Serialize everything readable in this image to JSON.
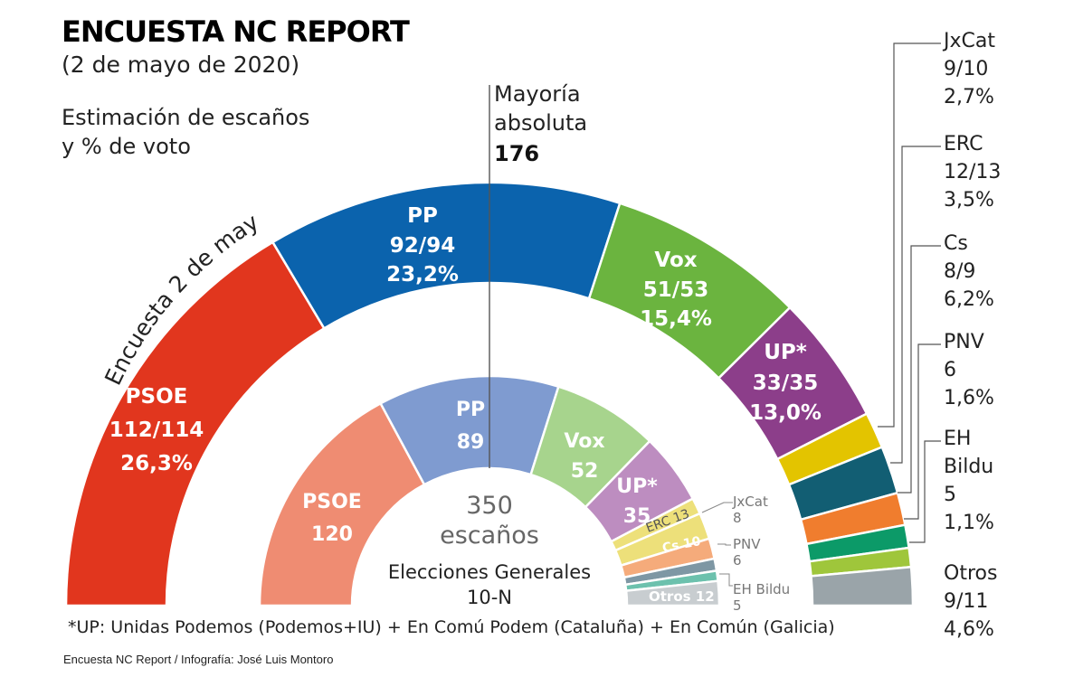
{
  "header": {
    "title": "ENCUESTA NC REPORT",
    "date": "(2 de mayo de 2020)",
    "subtitle_line1": "Estimación de escaños",
    "subtitle_line2": "y % de voto"
  },
  "majority": {
    "line1": "Mayoría",
    "line2": "absoluta",
    "value": "176"
  },
  "outer_ring_label": "Encuesta 2 de mayo",
  "center": {
    "total": "350",
    "total_label": "escaños",
    "election_line1": "Elecciones Generales",
    "election_line2": "10-N"
  },
  "footnote": "*UP: Unidas Podemos (Podemos+IU) + En Comú Podem (Cataluña) + En Común (Galicia)",
  "credit": "Encuesta NC Report / Infografía: José Luis Montoro",
  "chart_data": [
    {
      "type": "pie",
      "name": "Encuesta 2 de mayo",
      "series": [
        {
          "party": "PSOE",
          "seats": "112/114",
          "seats_value": 113,
          "vote": "26,3%",
          "color": "#e1361e"
        },
        {
          "party": "PP",
          "seats": "92/94",
          "seats_value": 93,
          "vote": "23,2%",
          "color": "#0b63ad"
        },
        {
          "party": "Vox",
          "seats": "51/53",
          "seats_value": 52,
          "vote": "15,4%",
          "color": "#6bb43f"
        },
        {
          "party": "UP*",
          "seats": "33/35",
          "seats_value": 34,
          "vote": "13,0%",
          "color": "#8c3e8a"
        },
        {
          "party": "JxCat",
          "seats": "9/10",
          "seats_value": 9.5,
          "vote": "2,7%",
          "color": "#e3c400"
        },
        {
          "party": "ERC",
          "seats": "12/13",
          "seats_value": 12.5,
          "vote": "3,5%",
          "color": "#125e73"
        },
        {
          "party": "Cs",
          "seats": "8/9",
          "seats_value": 8.5,
          "vote": "6,2%",
          "color": "#f07d2e"
        },
        {
          "party": "PNV",
          "seats": "6",
          "seats_value": 6,
          "vote": "1,6%",
          "color": "#0c9a68"
        },
        {
          "party": "EH Bildu",
          "seats": "5",
          "seats_value": 5,
          "vote": "1,1%",
          "color": "#9fc63b"
        },
        {
          "party": "Otros",
          "seats": "9/11",
          "seats_value": 10,
          "vote": "4,6%",
          "color": "#9aa4a9"
        }
      ]
    },
    {
      "type": "pie",
      "name": "Elecciones Generales 10-N",
      "series": [
        {
          "party": "PSOE",
          "seats": 120,
          "color": "#ef8c72"
        },
        {
          "party": "PP",
          "seats": 89,
          "color": "#7f9bd0"
        },
        {
          "party": "Vox",
          "seats": 52,
          "color": "#a7d48d"
        },
        {
          "party": "UP*",
          "seats": 35,
          "color": "#bd8dc0"
        },
        {
          "party": "JxCat",
          "seats": 8,
          "color": "#ede07a"
        },
        {
          "party": "ERC",
          "seats": 13,
          "color": "#ede07a"
        },
        {
          "party": "Cs",
          "seats": 10,
          "color": "#f5ab7b"
        },
        {
          "party": "PNV",
          "seats": 6,
          "color": "#7e97a4"
        },
        {
          "party": "EH Bildu",
          "seats": 5,
          "color": "#6cc1ad"
        },
        {
          "party": "Otros",
          "seats": 12,
          "color": "#c8cdd0"
        }
      ],
      "labels": {
        "inner_erc": "ERC 13",
        "inner_cs": "Cs 10",
        "inner_otros": "Otros 12",
        "jxcat_name": "JxCat",
        "jxcat_seats": "8",
        "pnv_name": "PNV",
        "pnv_seats": "6",
        "bildu_name": "EH Bildu",
        "bildu_seats": "5"
      }
    }
  ]
}
